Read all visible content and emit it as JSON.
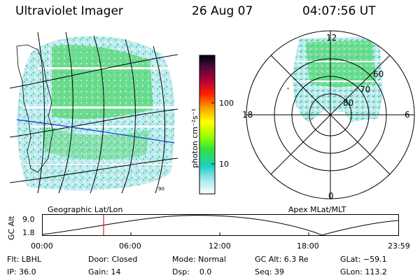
{
  "header": {
    "instrument": "Ultraviolet Imager",
    "date": "26 Aug 07",
    "time": "04:07:56 UT"
  },
  "geo_panel": {
    "label": "Geographic Lat/Lon",
    "corner_label": "90"
  },
  "apex_panel": {
    "label": "Apex MLat/MLT",
    "mlt_labels": [
      "12",
      "18",
      "6",
      "0"
    ],
    "lat_labels": [
      "60",
      "70",
      "80"
    ]
  },
  "colorbar": {
    "unit_label": "photon cm⁻²s⁻¹",
    "ticks": [
      "100",
      "10"
    ]
  },
  "altitude_plot": {
    "ylabel": "GC Alt",
    "y_ticks": [
      "9.0",
      "1.8"
    ],
    "x_ticks": [
      "00:00",
      "06:00",
      "12:00",
      "18:00",
      "23:59"
    ],
    "marker_color": "#cc0000"
  },
  "status": {
    "filter": "Flt: LBHL",
    "ip": "IP: 36.0",
    "door": "Door: Closed",
    "gain": "Gain: 14",
    "mode": "Mode: Normal",
    "dsp": "Dsp:    0.0",
    "gc_alt": "GC Alt: 6.3 Re",
    "seq": "Seq: 39",
    "glat": "GLat: −59.1",
    "glon": "GLon: 113.2"
  }
}
